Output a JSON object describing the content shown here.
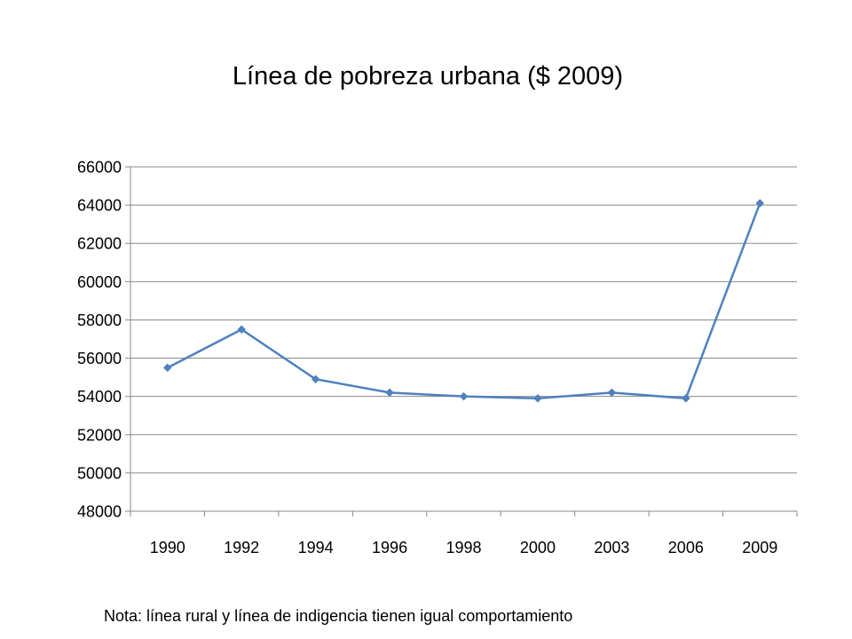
{
  "chart_data": {
    "type": "line",
    "title": "Línea de pobreza urbana ($ 2009)",
    "categories": [
      "1990",
      "1992",
      "1994",
      "1996",
      "1998",
      "2000",
      "2003",
      "2006",
      "2009"
    ],
    "series": [
      {
        "values": [
          55500,
          57500,
          54900,
          54200,
          54000,
          53900,
          54200,
          53900,
          64100
        ],
        "color": "#4f81bd",
        "marker": "diamond"
      }
    ],
    "ylim": [
      48000,
      66000
    ],
    "yticks": [
      "48000",
      "50000",
      "52000",
      "54000",
      "56000",
      "58000",
      "60000",
      "62000",
      "64000",
      "66000"
    ],
    "grid": true,
    "legend": "none",
    "gridline_color": "#898989"
  },
  "note": "Nota: línea rural y línea de indigencia tienen igual comportamiento"
}
